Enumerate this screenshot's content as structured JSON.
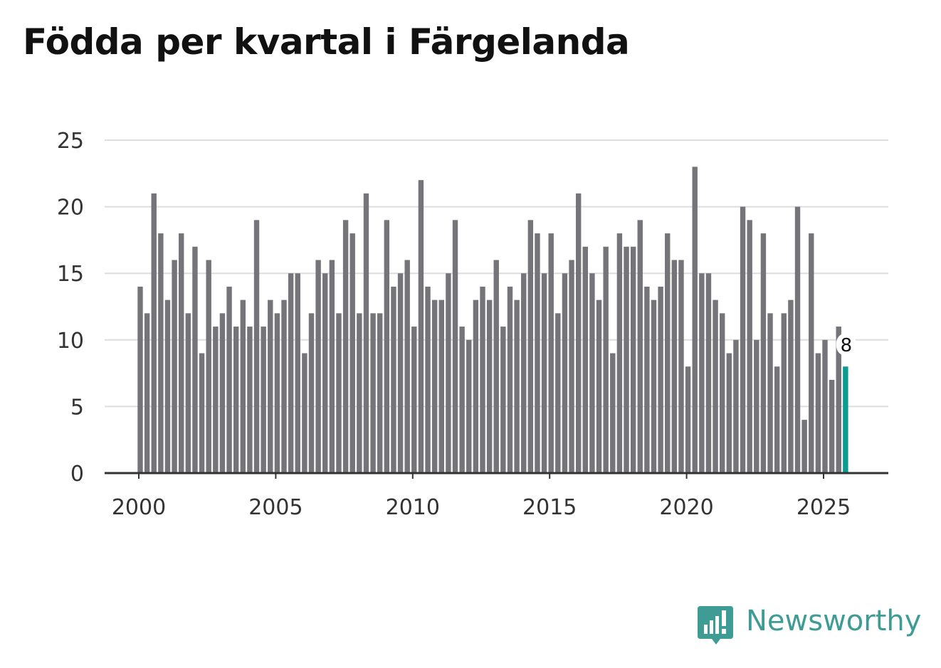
{
  "chart_data": {
    "type": "bar",
    "title": "Födda per kvartal i Färgelanda",
    "xlabel": "",
    "ylabel": "",
    "ylim": [
      0,
      25
    ],
    "yticks": [
      "0",
      "5",
      "10",
      "15",
      "20",
      "25"
    ],
    "xticks": [
      "2000",
      "2005",
      "2010",
      "2015",
      "2020",
      "2025"
    ],
    "x_start": "2000 K1",
    "values": [
      14,
      12,
      21,
      18,
      13,
      16,
      18,
      12,
      17,
      9,
      16,
      11,
      12,
      14,
      11,
      13,
      11,
      19,
      11,
      13,
      12,
      13,
      15,
      15,
      9,
      12,
      16,
      15,
      16,
      12,
      19,
      18,
      12,
      21,
      12,
      12,
      19,
      14,
      15,
      16,
      11,
      22,
      14,
      13,
      13,
      15,
      19,
      11,
      10,
      13,
      14,
      13,
      16,
      11,
      14,
      13,
      15,
      19,
      18,
      15,
      18,
      12,
      15,
      16,
      21,
      17,
      15,
      13,
      17,
      9,
      18,
      17,
      17,
      19,
      14,
      13,
      14,
      18,
      16,
      16,
      8,
      23,
      15,
      15,
      13,
      12,
      9,
      10,
      20,
      19,
      10,
      18,
      12,
      8,
      12,
      13,
      20,
      4,
      18,
      9,
      10,
      7,
      11,
      8
    ],
    "highlight_label": "8",
    "colors": {
      "bar": "#757478",
      "highlight": "#0c9c92",
      "grid": "#dddddd",
      "axis": "#333333"
    }
  },
  "brand": {
    "name": "Newsworthy",
    "icon": "newsworthy-logo-icon",
    "color": "#3e9c94"
  }
}
